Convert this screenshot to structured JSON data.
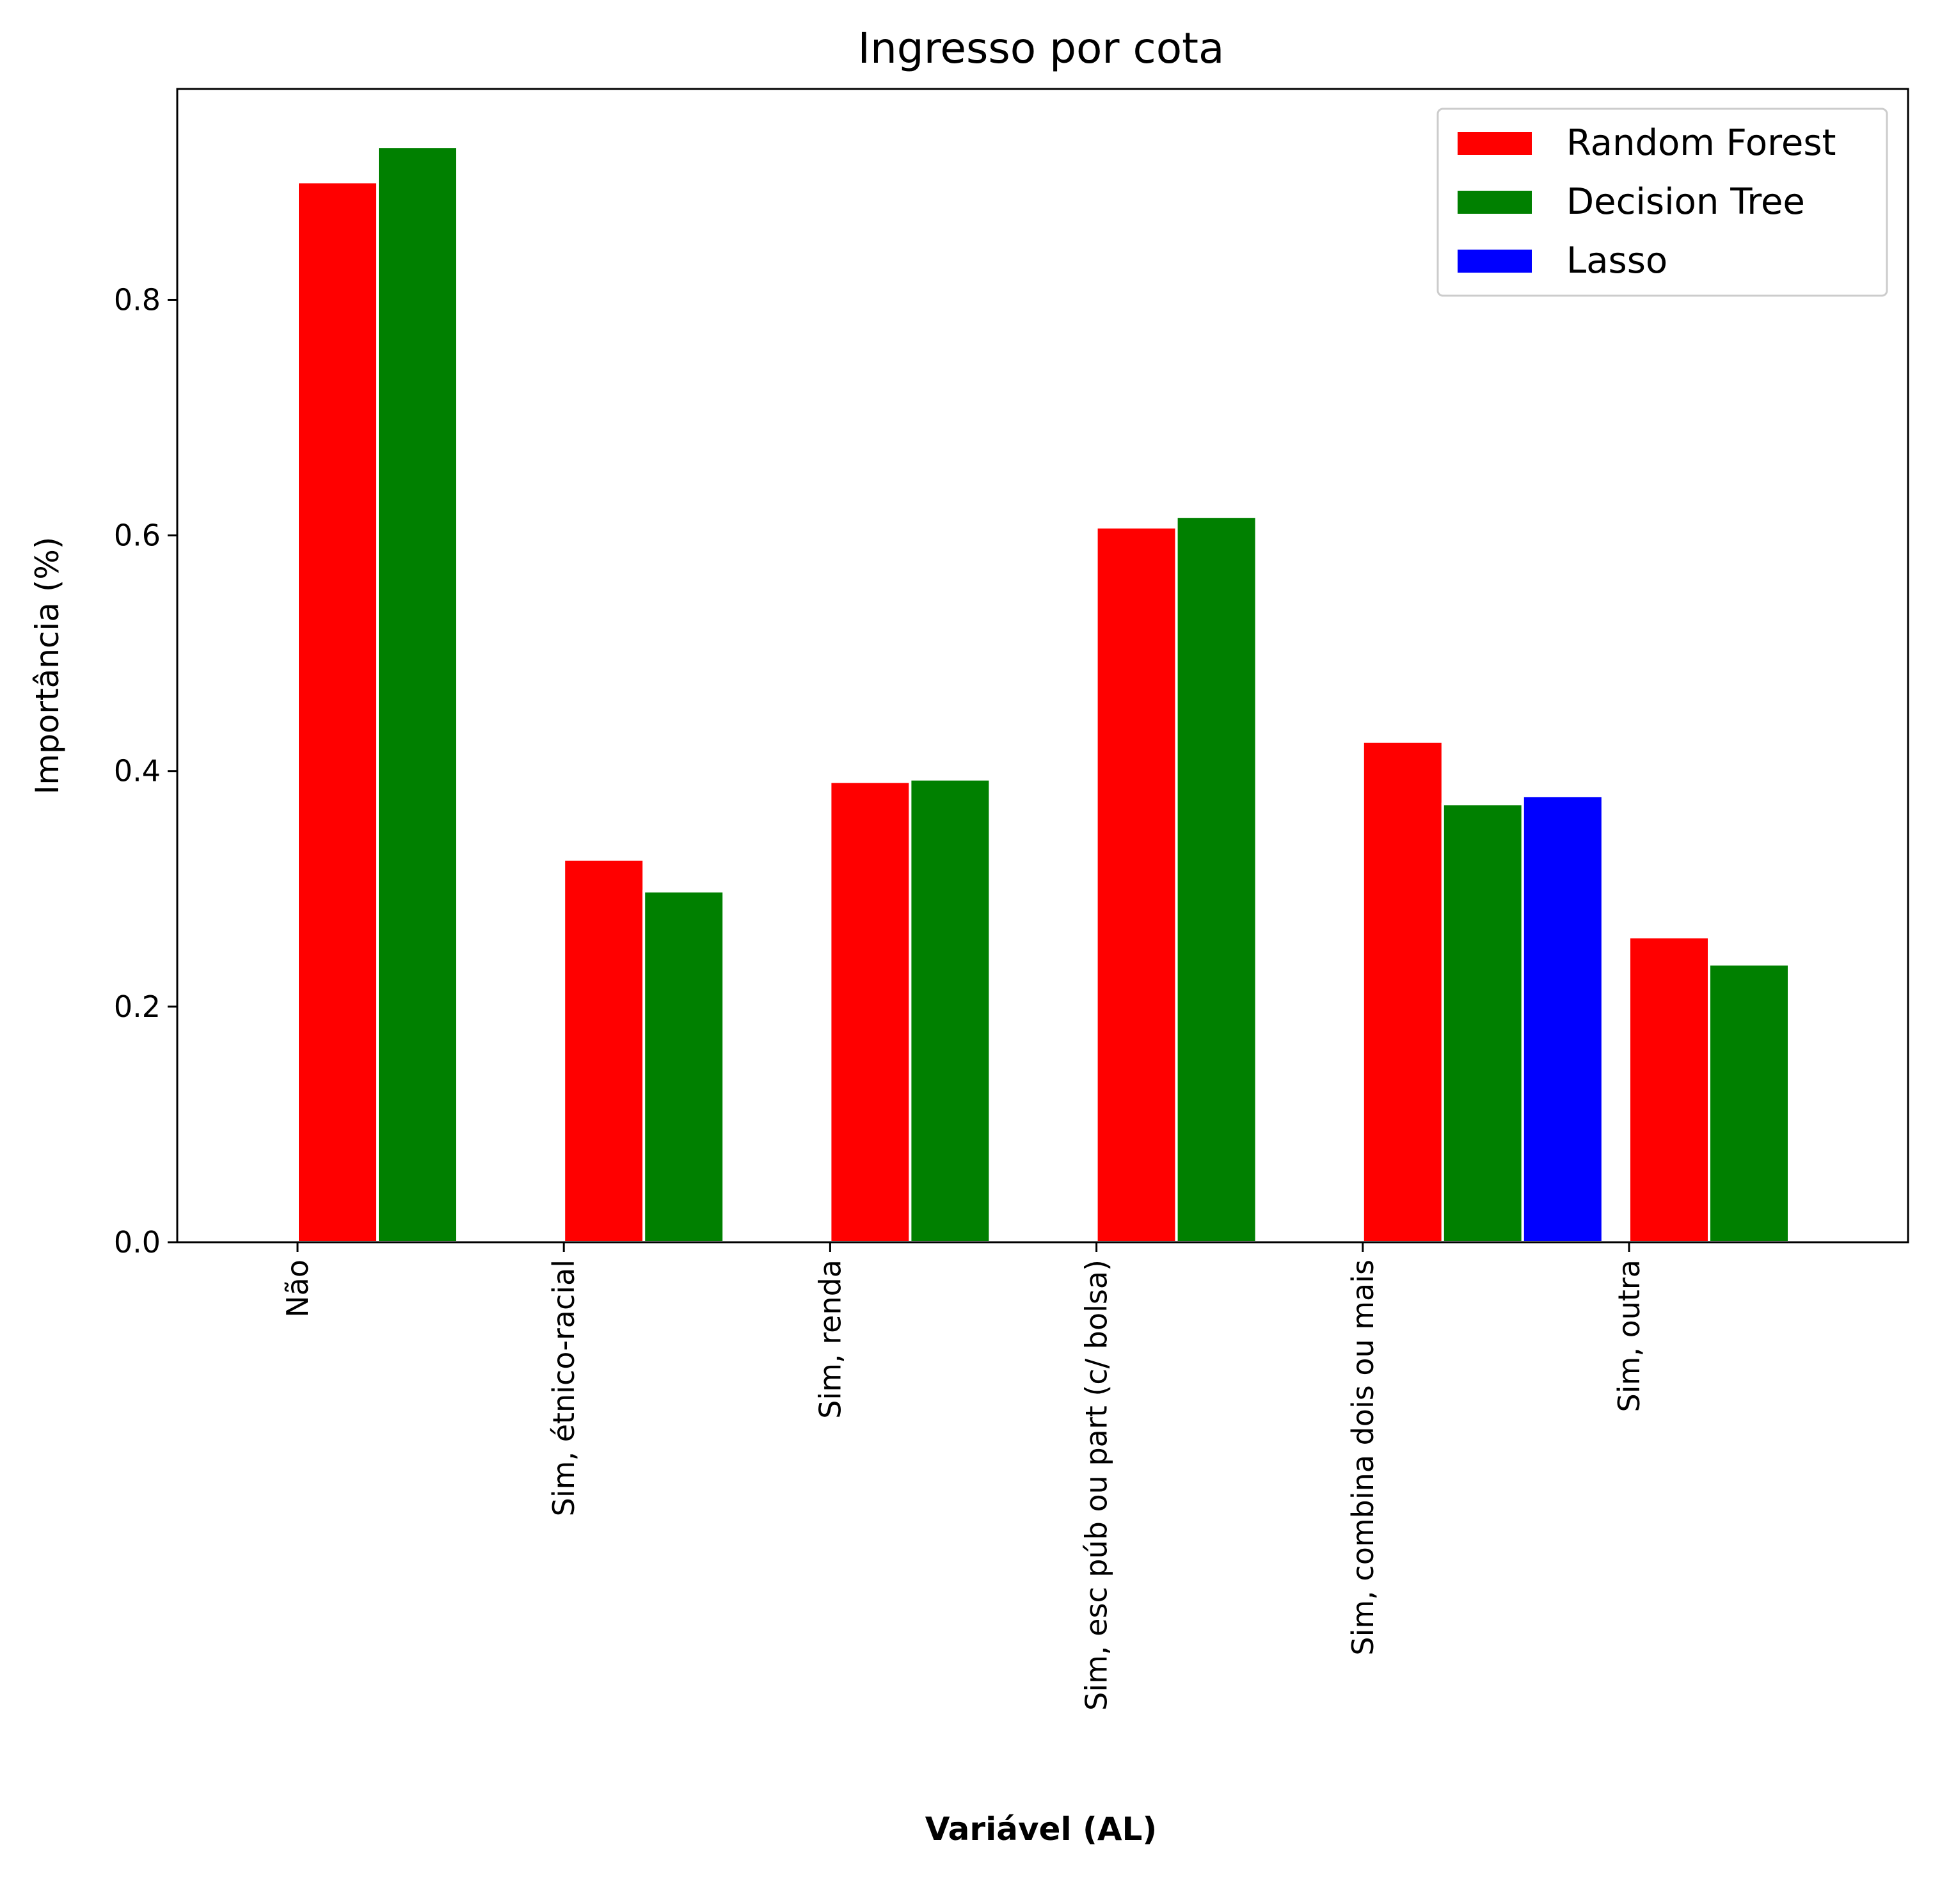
{
  "chart_data": {
    "type": "bar",
    "title": "Ingresso por cota",
    "xlabel": "Variável (AL)",
    "ylabel": "Importância (%)",
    "categories": [
      "Não",
      "Sim, étnico-racial",
      "Sim, renda",
      "Sim, esc púb ou part (c/ bolsa)",
      "Sim, combina dois ou mais",
      "Sim, outra"
    ],
    "series": [
      {
        "name": "Random Forest",
        "color": "#ff0000",
        "values": [
          0.9,
          0.325,
          0.391,
          0.607,
          0.425,
          0.259
        ]
      },
      {
        "name": "Decision Tree",
        "color": "#008000",
        "values": [
          0.93,
          0.298,
          0.393,
          0.616,
          0.372,
          0.236
        ]
      },
      {
        "name": "Lasso",
        "color": "#0000ff",
        "values": [
          null,
          null,
          null,
          null,
          0.379,
          null
        ]
      }
    ],
    "ylim": [
      0,
      0.979
    ],
    "yticks": [
      "0.0",
      "0.2",
      "0.4",
      "0.6",
      "0.8"
    ],
    "legend_position": "top-right",
    "grid": false
  }
}
